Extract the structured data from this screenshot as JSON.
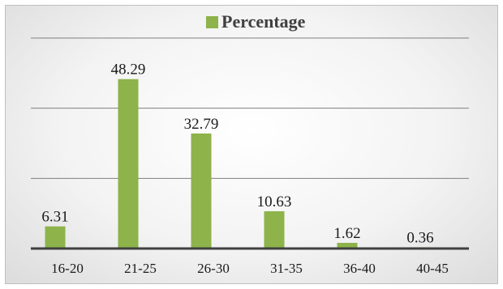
{
  "colors": {
    "bar": "#8db34a",
    "grid": "#7f7f7f",
    "axis": "#404040",
    "text": "#1a1a1a"
  },
  "chart_data": {
    "type": "bar",
    "categories": [
      "16-20",
      "21-25",
      "26-30",
      "31-35",
      "36-40",
      "40-45"
    ],
    "series": [
      {
        "name": "Percentage",
        "values": [
          6.31,
          48.29,
          32.79,
          10.63,
          1.62,
          0.36
        ]
      }
    ],
    "data_labels": [
      "6.31",
      "48.29",
      "32.79",
      "10.63",
      "1.62",
      "0.36"
    ],
    "ylim": [
      0,
      60
    ],
    "grid": true,
    "legend_position": "top-center",
    "title": "",
    "xlabel": "",
    "ylabel": ""
  }
}
